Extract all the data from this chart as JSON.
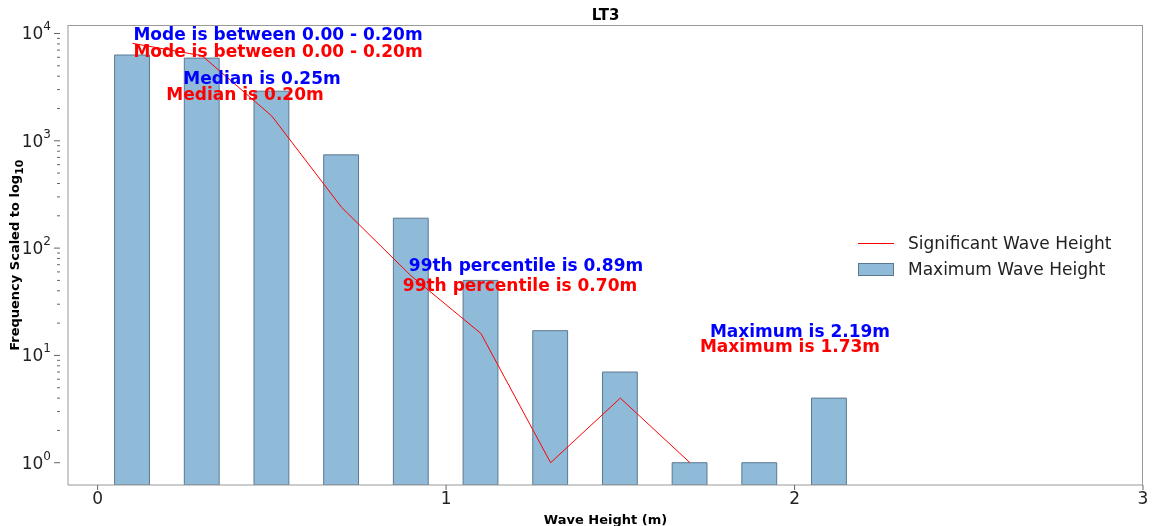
{
  "chart_data": {
    "type": "bar",
    "title": "LT3",
    "xlabel": "Wave Height (m)",
    "ylabel": "Frequency Scaled to log$_{10}$",
    "x": [
      0.1,
      0.3,
      0.5,
      0.7,
      0.9,
      1.1,
      1.3,
      1.5,
      1.7,
      1.9,
      2.1
    ],
    "series": [
      {
        "name": "Significant Wave Height",
        "type": "line",
        "color": "#ff0000",
        "x": [
          0.1,
          0.3,
          0.5,
          0.7,
          0.9,
          1.1,
          1.3,
          1.5,
          1.7
        ],
        "values": [
          8100,
          6200,
          1700,
          240,
          55,
          16,
          1,
          4,
          1
        ]
      },
      {
        "name": "Maximum Wave Height",
        "color": "#8fbbd9",
        "values": [
          6300,
          5900,
          2900,
          740,
          190,
          50,
          17,
          7,
          1,
          1,
          4
        ]
      }
    ],
    "xlim": [
      -0.085,
      3
    ],
    "xticks": [
      0,
      1,
      2,
      3
    ],
    "ylim": [
      0.62,
      12000
    ],
    "yticks": [
      {
        "value": 1,
        "label": "10$^{0}$"
      },
      {
        "value": 2,
        "label": null
      },
      {
        "value": 3,
        "label": null
      },
      {
        "value": 4,
        "label": null
      },
      {
        "value": 5,
        "label": null
      },
      {
        "value": 6,
        "label": null
      },
      {
        "value": 7,
        "label": null
      },
      {
        "value": 8,
        "label": null
      },
      {
        "value": 9,
        "label": null
      },
      {
        "value": 10,
        "label": "10$^{1}$"
      },
      {
        "value": 20,
        "label": null
      },
      {
        "value": 30,
        "label": null
      },
      {
        "value": 40,
        "label": null
      },
      {
        "value": 50,
        "label": null
      },
      {
        "value": 60,
        "label": null
      },
      {
        "value": 70,
        "label": null
      },
      {
        "value": 80,
        "label": null
      },
      {
        "value": 90,
        "label": null
      },
      {
        "value": 100,
        "label": "10$^{2}$"
      },
      {
        "value": 200,
        "label": null
      },
      {
        "value": 300,
        "label": null
      },
      {
        "value": 400,
        "label": null
      },
      {
        "value": 500,
        "label": null
      },
      {
        "value": 600,
        "label": null
      },
      {
        "value": 700,
        "label": null
      },
      {
        "value": 800,
        "label": null
      },
      {
        "value": 900,
        "label": null
      },
      {
        "value": 1000,
        "label": "10$^{3}$"
      },
      {
        "value": 2000,
        "label": null
      },
      {
        "value": 3000,
        "label": null
      },
      {
        "value": 4000,
        "label": null
      },
      {
        "value": 5000,
        "label": null
      },
      {
        "value": 6000,
        "label": null
      },
      {
        "value": 7000,
        "label": null
      },
      {
        "value": 8000,
        "label": null
      },
      {
        "value": 9000,
        "label": null
      },
      {
        "value": 10000,
        "label": "10$^{4}$"
      }
    ],
    "log": "y",
    "legend": "right",
    "marker": "none",
    "annotations": [
      "Mode is between 0.00 - 0.20m",
      "Mode is between 0.00 - 0.20m",
      "Median is 0.25m",
      "Median is 0.20m",
      "99th percentile is 0.89m",
      "99th percentile is 0.70m",
      "Maximum is 2.19m",
      "Maximum is 1.73m"
    ]
  }
}
